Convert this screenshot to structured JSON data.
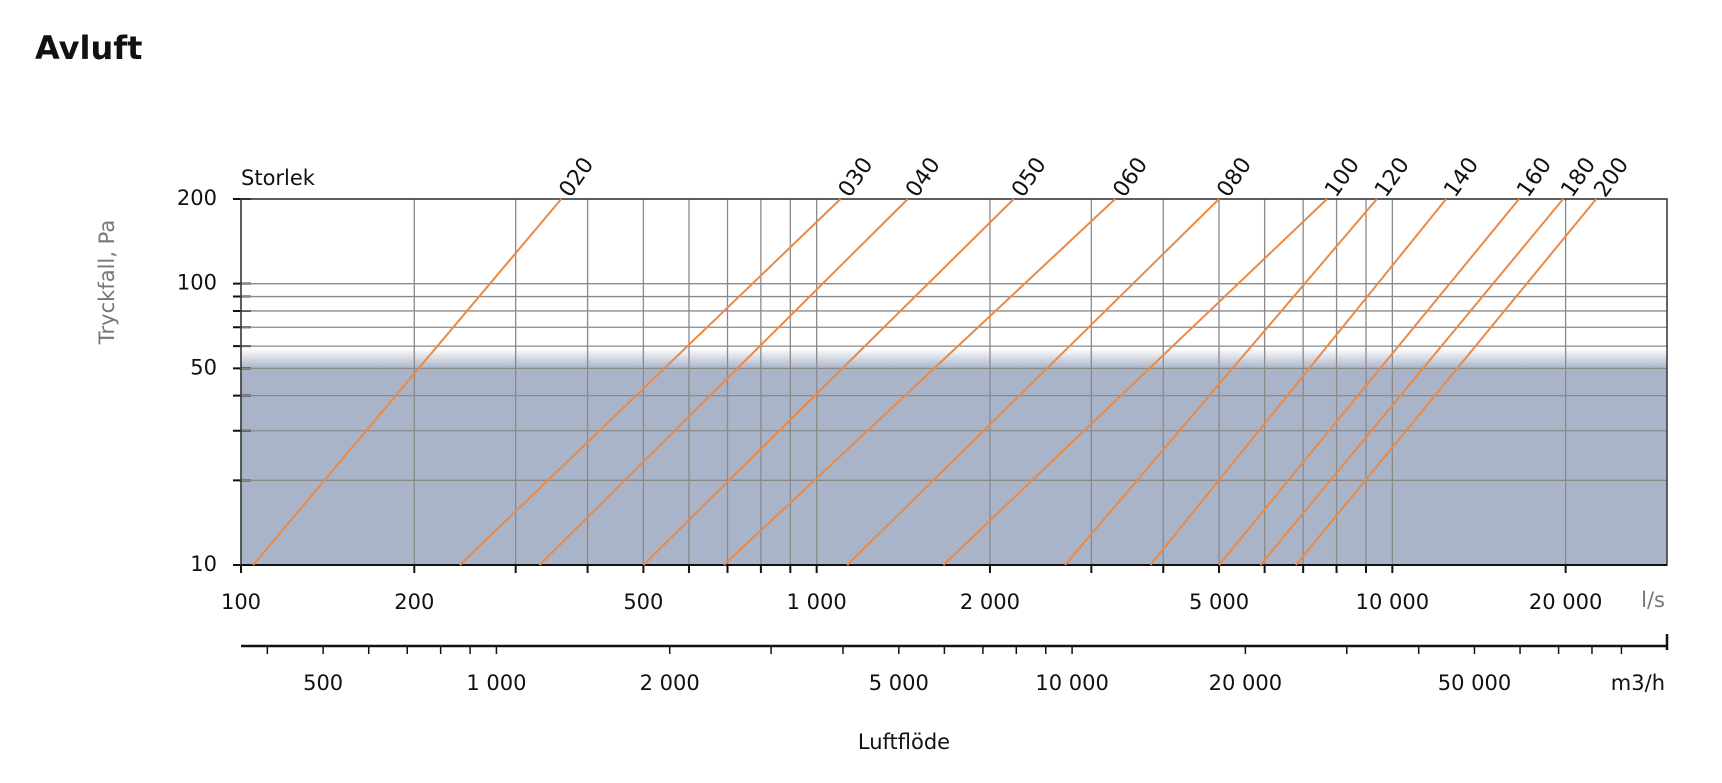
{
  "chart_data": {
    "type": "line",
    "title": "Avluft",
    "xscale": "log",
    "yscale": "log",
    "series_label": "Storlek",
    "ylabel": "Tryckfall, Pa",
    "xunit": "l/s",
    "xlabel": "Luftflöde",
    "xlim": [
      100,
      30000
    ],
    "ylim": [
      10,
      200
    ],
    "xticks": [
      100,
      200,
      500,
      {
        "value": 1000,
        "label": "1 000"
      },
      {
        "value": 2000,
        "label": "2 000"
      },
      {
        "value": 5000,
        "label": "5 000"
      },
      {
        "value": 10000,
        "label": "10 000"
      },
      {
        "value": 20000,
        "label": "20 000"
      }
    ],
    "xminorticks": [
      300,
      400,
      600,
      700,
      800,
      900,
      3000,
      4000,
      6000,
      7000,
      8000,
      9000
    ],
    "yticks": [
      10,
      50,
      100,
      200
    ],
    "yminorticks": [
      20,
      30,
      40,
      60,
      70,
      80,
      90
    ],
    "grid": true,
    "shade_ylim": [
      10,
      50
    ],
    "shade_color": "#aab4c8",
    "x2unit": "m3/h",
    "x2lim": [
      360,
      108000
    ],
    "x2ticks": [
      500,
      {
        "value": 1000,
        "label": "1 000"
      },
      {
        "value": 2000,
        "label": "2 000"
      },
      {
        "value": 5000,
        "label": "5 000"
      },
      {
        "value": 10000,
        "label": "10 000"
      },
      {
        "value": 20000,
        "label": "20 000"
      },
      {
        "value": 50000,
        "label": "50 000"
      }
    ],
    "x2minorticks": [
      400,
      600,
      700,
      800,
      900,
      3000,
      4000,
      6000,
      7000,
      8000,
      9000,
      30000,
      40000,
      60000,
      70000,
      80000,
      90000
    ],
    "color": "#ea8a45",
    "series": [
      {
        "name": "020",
        "x": [
          105,
          360
        ],
        "values": [
          10,
          200
        ]
      },
      {
        "name": "030",
        "x": [
          240,
          1100
        ],
        "values": [
          10,
          200
        ]
      },
      {
        "name": "040",
        "x": [
          330,
          1440
        ],
        "values": [
          10,
          200
        ]
      },
      {
        "name": "050",
        "x": [
          500,
          2200
        ],
        "values": [
          10,
          200
        ]
      },
      {
        "name": "060",
        "x": [
          690,
          3300
        ],
        "values": [
          10,
          200
        ]
      },
      {
        "name": "080",
        "x": [
          1130,
          5000
        ],
        "values": [
          10,
          200
        ]
      },
      {
        "name": "100",
        "x": [
          1660,
          7700
        ],
        "values": [
          10,
          200
        ]
      },
      {
        "name": "120",
        "x": [
          2700,
          9400
        ],
        "values": [
          10,
          200
        ]
      },
      {
        "name": "140",
        "x": [
          3800,
          12400
        ],
        "values": [
          10,
          200
        ]
      },
      {
        "name": "160",
        "x": [
          5000,
          16600
        ],
        "values": [
          10,
          200
        ]
      },
      {
        "name": "180",
        "x": [
          5900,
          19800
        ],
        "values": [
          10,
          200
        ]
      },
      {
        "name": "200",
        "x": [
          6800,
          22600
        ],
        "values": [
          10,
          200
        ]
      }
    ]
  }
}
